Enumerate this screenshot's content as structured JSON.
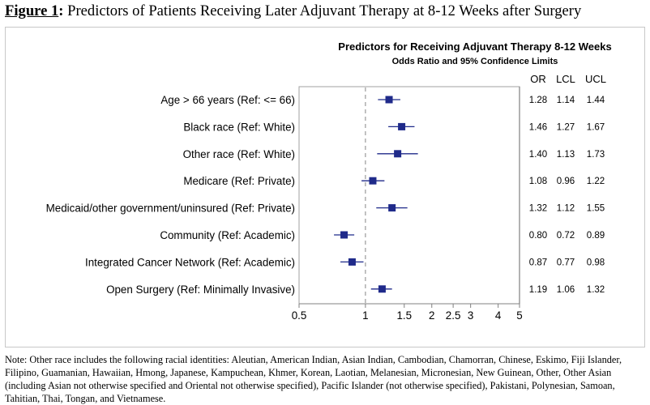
{
  "figure": {
    "label": "Figure 1",
    "title": "Predictors of Patients Receiving Later Adjuvant Therapy at 8-12 Weeks after Surgery"
  },
  "note": "Note: Other race includes the following racial identities: Aleutian, American Indian, Asian Indian, Cambodian, Chamorran, Chinese, Eskimo, Fiji Islander, Filipino, Guamanian, Hawaiian, Hmong, Japanese, Kampuchean, Khmer, Korean, Laotian, Melanesian, Micronesian, New Guinean, Other, Other Asian (including Asian not otherwise specified and Oriental not otherwise specified), Pacific Islander (not otherwise specified), Pakistani, Polynesian, Samoan, Tahitian, Thai, Tongan, and Vietnamese.",
  "chart_data": {
    "type": "forest",
    "title": "Predictors for Receiving Adjuvant Therapy 8-12 Weeks",
    "subtitle": "Odds Ratio and 95% Confidence Limits",
    "columns": [
      "OR",
      "LCL",
      "UCL"
    ],
    "x_scale": "log",
    "xlim": [
      0.5,
      5
    ],
    "reference_line": 1,
    "x_ticks": [
      0.5,
      1,
      1.5,
      2,
      2.5,
      3,
      4,
      5
    ],
    "x_tick_labels": [
      "0.5",
      "1",
      "1.5",
      "2",
      "2.5",
      "3",
      "4",
      "5"
    ],
    "marker_color": "#1f2a8a",
    "rows": [
      {
        "label": "Age > 66 years (Ref: <= 66)",
        "or": 1.28,
        "lcl": 1.14,
        "ucl": 1.44,
        "or_text": "1.28",
        "lcl_text": "1.14",
        "ucl_text": "1.44"
      },
      {
        "label": "Black race (Ref: White)",
        "or": 1.46,
        "lcl": 1.27,
        "ucl": 1.67,
        "or_text": "1.46",
        "lcl_text": "1.27",
        "ucl_text": "1.67"
      },
      {
        "label": "Other race (Ref: White)",
        "or": 1.4,
        "lcl": 1.13,
        "ucl": 1.73,
        "or_text": "1.40",
        "lcl_text": "1.13",
        "ucl_text": "1.73"
      },
      {
        "label": "Medicare (Ref: Private)",
        "or": 1.08,
        "lcl": 0.96,
        "ucl": 1.22,
        "or_text": "1.08",
        "lcl_text": "0.96",
        "ucl_text": "1.22"
      },
      {
        "label": "Medicaid/other government/uninsured (Ref: Private)",
        "or": 1.32,
        "lcl": 1.12,
        "ucl": 1.55,
        "or_text": "1.32",
        "lcl_text": "1.12",
        "ucl_text": "1.55"
      },
      {
        "label": "Community (Ref: Academic)",
        "or": 0.8,
        "lcl": 0.72,
        "ucl": 0.89,
        "or_text": "0.80",
        "lcl_text": "0.72",
        "ucl_text": "0.89"
      },
      {
        "label": "Integrated Cancer Network (Ref: Academic)",
        "or": 0.87,
        "lcl": 0.77,
        "ucl": 0.98,
        "or_text": "0.87",
        "lcl_text": "0.77",
        "ucl_text": "0.98"
      },
      {
        "label": "Open Surgery (Ref: Minimally Invasive)",
        "or": 1.19,
        "lcl": 1.06,
        "ucl": 1.32,
        "or_text": "1.19",
        "lcl_text": "1.06",
        "ucl_text": "1.32"
      }
    ]
  }
}
